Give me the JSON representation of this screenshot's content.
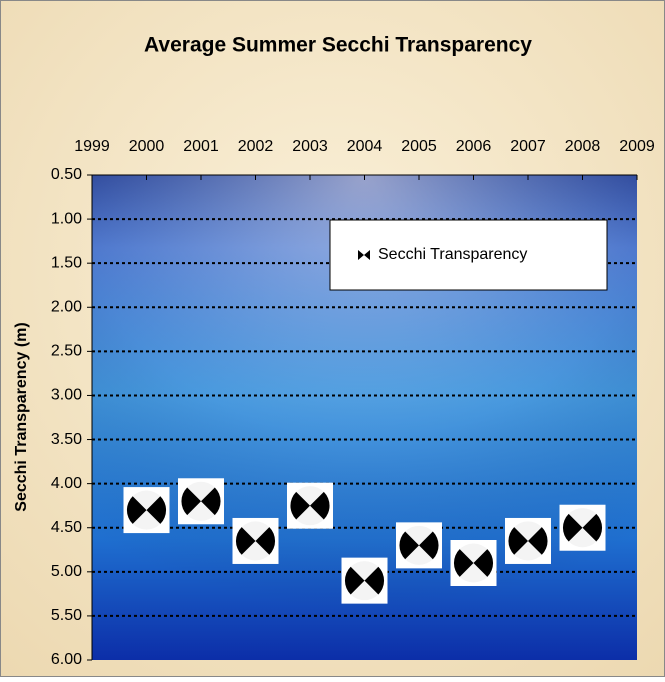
{
  "chart_data": {
    "type": "scatter",
    "title": "Average Summer Secchi Transparency",
    "y_label": "Secchi Transparency (m)",
    "x": [
      2000,
      2001,
      2002,
      2003,
      2004,
      2005,
      2006,
      2007,
      2008
    ],
    "series": [
      {
        "name": "Secchi Transparency",
        "color": "#000000",
        "values": [
          4.3,
          4.2,
          4.65,
          4.25,
          5.1,
          4.7,
          4.9,
          4.65,
          4.5
        ]
      }
    ],
    "xlim": [
      1999,
      2009
    ],
    "xticks": [
      1999,
      2000,
      2001,
      2002,
      2003,
      2004,
      2005,
      2006,
      2007,
      2008,
      2009
    ],
    "ylim": [
      0.5,
      6
    ],
    "y_reversed": true,
    "yticks": [
      {
        "value": 0.5,
        "label": "0.50"
      },
      {
        "value": 1,
        "label": "1.00"
      },
      {
        "value": 1.5,
        "label": "1.50"
      },
      {
        "value": 2,
        "label": "2.00"
      },
      {
        "value": 2.5,
        "label": "2.50"
      },
      {
        "value": 3,
        "label": "3.00"
      },
      {
        "value": 3.5,
        "label": "3.50"
      },
      {
        "value": 4,
        "label": "4.00"
      },
      {
        "value": 4.5,
        "label": "4.50"
      },
      {
        "value": 5,
        "label": "5.00"
      },
      {
        "value": 5.5,
        "label": "5.50"
      },
      {
        "value": 6,
        "label": "6.00"
      }
    ],
    "grid": true,
    "legend": "upper right"
  }
}
